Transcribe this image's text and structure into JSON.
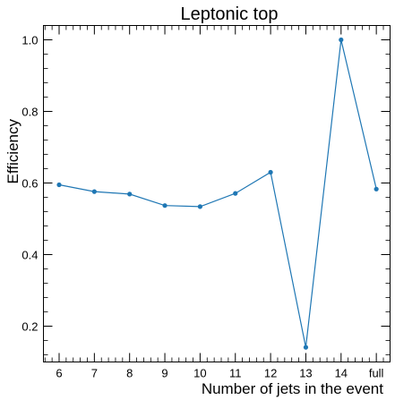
{
  "chart_data": {
    "type": "line",
    "title": "Leptonic top",
    "xlabel": "Number of jets in the event",
    "ylabel": "Efficiency",
    "categories": [
      "6",
      "7",
      "8",
      "9",
      "10",
      "11",
      "12",
      "13",
      "14",
      "full"
    ],
    "series": [
      {
        "values": [
          0.595,
          0.576,
          0.569,
          0.537,
          0.534,
          0.571,
          0.63,
          0.141,
          1.0,
          0.583
        ],
        "color": "#1f77b4"
      }
    ],
    "ylim": [
      0.1,
      1.04
    ],
    "yticks": [
      0.2,
      0.4,
      0.6,
      0.8,
      1.0
    ],
    "ytick_labels": [
      "0.2",
      "0.4",
      "0.6",
      "0.8",
      "1.0"
    ],
    "grid": false,
    "legend": "none"
  }
}
